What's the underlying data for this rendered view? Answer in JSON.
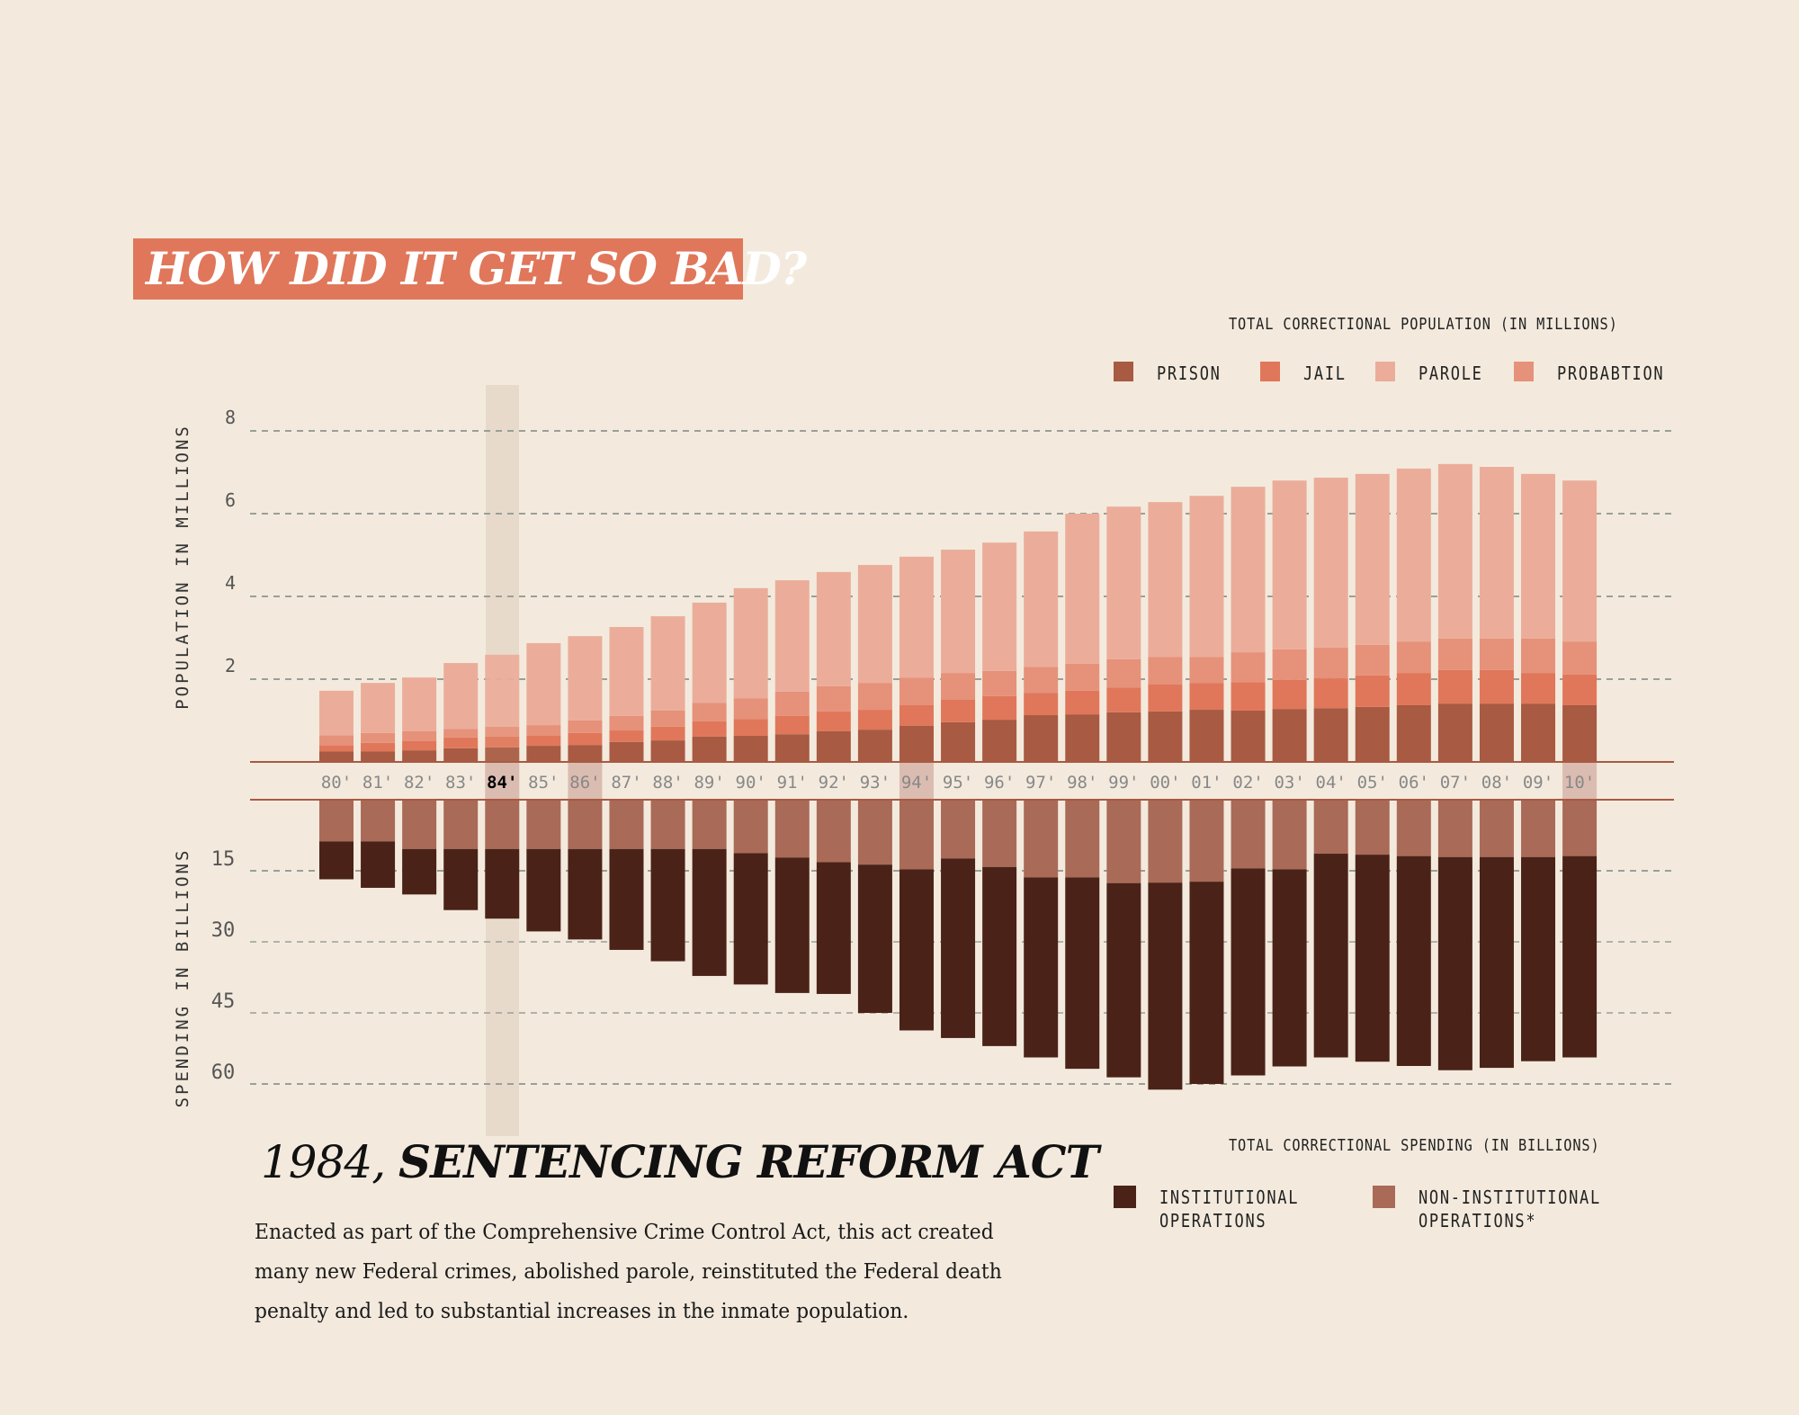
{
  "title": "HOW DID IT GET SO BAD?",
  "event": {
    "year_label": "1984,",
    "name": "SENTENCING REFORM ACT",
    "description": "Enacted as part of the Comprehensive Crime Control Act, this act created many new Federal crimes, abolished parole, reinstituted the Federal death penalty and led to substantial increases in the inmate population."
  },
  "colors": {
    "background": "#f3eadd",
    "title_box": "#e0775a",
    "prison": "#a85a42",
    "jail": "#e0775a",
    "parole": "#ebad9a",
    "probation": "#e6917a",
    "institutional": "#4a2218",
    "non_institutional": "#a96a58",
    "highlight": "#e8dacb",
    "label_highlight": "#dbbcb1",
    "gridline": "#9a9f98"
  },
  "chart_data": [
    {
      "type": "bar",
      "stacked": true,
      "title": "TOTAL CORRECTIONAL POPULATION (IN MILLIONS)",
      "ylabel": "POPULATION IN MILLIONS",
      "xlabel": "",
      "ylim": [
        0,
        8
      ],
      "yticks": [
        2,
        4,
        6,
        8
      ],
      "grid": true,
      "legend": {
        "position": "top-right",
        "items": [
          {
            "key": "prison",
            "label": "PRISON"
          },
          {
            "key": "jail",
            "label": "JAIL"
          },
          {
            "key": "parole",
            "label": "PAROLE"
          },
          {
            "key": "probation",
            "label": "PROBABTION"
          }
        ]
      },
      "categories": [
        "80'",
        "81'",
        "82'",
        "83'",
        "84'",
        "85'",
        "86'",
        "87'",
        "88'",
        "89'",
        "90'",
        "91'",
        "92'",
        "93'",
        "94'",
        "95'",
        "96'",
        "97'",
        "98'",
        "99'",
        "00'",
        "01'",
        "02'",
        "03'",
        "04'",
        "05'",
        "06'",
        "07'",
        "08'",
        "09'",
        "10'"
      ],
      "highlighted_category": "84'",
      "shaded_categories": [
        "86'",
        "94'",
        "10'"
      ],
      "series": [
        {
          "name": "PRISON",
          "key": "prison",
          "values": [
            0.25,
            0.25,
            0.28,
            0.33,
            0.35,
            0.39,
            0.41,
            0.48,
            0.52,
            0.61,
            0.63,
            0.67,
            0.74,
            0.78,
            0.87,
            0.96,
            1.02,
            1.13,
            1.15,
            1.2,
            1.22,
            1.26,
            1.24,
            1.28,
            1.3,
            1.33,
            1.37,
            1.41,
            1.41,
            1.41,
            1.37
          ]
        },
        {
          "name": "JAIL",
          "key": "jail",
          "values": [
            0.15,
            0.21,
            0.22,
            0.26,
            0.26,
            0.24,
            0.29,
            0.28,
            0.33,
            0.37,
            0.41,
            0.44,
            0.48,
            0.48,
            0.5,
            0.54,
            0.57,
            0.54,
            0.57,
            0.6,
            0.65,
            0.65,
            0.69,
            0.7,
            0.72,
            0.76,
            0.78,
            0.81,
            0.81,
            0.74,
            0.74
          ]
        },
        {
          "name": "PROBABTION",
          "key": "probation",
          "values": [
            0.24,
            0.24,
            0.24,
            0.21,
            0.24,
            0.26,
            0.3,
            0.35,
            0.39,
            0.45,
            0.5,
            0.59,
            0.61,
            0.65,
            0.67,
            0.65,
            0.61,
            0.63,
            0.65,
            0.68,
            0.67,
            0.63,
            0.72,
            0.74,
            0.74,
            0.74,
            0.76,
            0.76,
            0.76,
            0.83,
            0.8
          ]
        },
        {
          "name": "PAROLE",
          "key": "parole",
          "values": [
            1.08,
            1.21,
            1.3,
            1.59,
            1.74,
            1.98,
            2.04,
            2.15,
            2.28,
            2.42,
            2.66,
            2.69,
            2.76,
            2.85,
            2.92,
            2.98,
            3.1,
            3.27,
            3.63,
            3.69,
            3.74,
            3.89,
            4.0,
            4.08,
            4.11,
            4.13,
            4.18,
            4.22,
            4.15,
            3.98,
            3.89
          ]
        }
      ],
      "totals": [
        1.72,
        1.91,
        2.04,
        2.39,
        2.59,
        2.87,
        3.04,
        3.26,
        3.52,
        3.85,
        4.2,
        4.39,
        4.59,
        4.76,
        4.96,
        5.13,
        5.3,
        5.57,
        6.0,
        6.17,
        6.28,
        6.43,
        6.65,
        6.8,
        6.87,
        6.96,
        7.09,
        7.2,
        7.13,
        6.96,
        6.8
      ]
    },
    {
      "type": "bar",
      "stacked": true,
      "orientation": "downward",
      "title": "TOTAL CORRECTIONAL SPENDING (IN BILLIONS)",
      "ylabel": "SPENDING IN BILLIONS",
      "xlabel": "",
      "ylim": [
        0,
        60
      ],
      "yticks": [
        15,
        30,
        45,
        60
      ],
      "grid": true,
      "legend": {
        "position": "bottom-right",
        "items": [
          {
            "key": "institutional",
            "label": "INSTITUTIONAL\nOPERATIONS"
          },
          {
            "key": "non_institutional",
            "label": "NON-INSTITUTIONAL\nOPERATIONS*"
          }
        ]
      },
      "categories": [
        "80'",
        "81'",
        "82'",
        "83'",
        "84'",
        "85'",
        "86'",
        "87'",
        "88'",
        "89'",
        "90'",
        "91'",
        "92'",
        "93'",
        "94'",
        "95'",
        "96'",
        "97'",
        "98'",
        "99'",
        "00'",
        "01'",
        "02'",
        "03'",
        "04'",
        "05'",
        "06'",
        "07'",
        "08'",
        "09'",
        "10'"
      ],
      "series": [
        {
          "name": "NON-INSTITUTIONAL OPERATIONS*",
          "key": "non_institutional",
          "values": [
            8.8,
            8.8,
            10.4,
            10.4,
            10.4,
            10.4,
            10.4,
            10.4,
            10.4,
            10.4,
            11.3,
            12.2,
            13.2,
            13.7,
            14.7,
            12.4,
            14.2,
            16.4,
            16.4,
            17.6,
            17.5,
            17.3,
            14.5,
            14.7,
            11.4,
            11.6,
            11.9,
            12.1,
            12.1,
            12.1,
            11.9
          ]
        },
        {
          "name": "INSTITUTIONAL OPERATIONS",
          "key": "institutional",
          "values": [
            8.0,
            9.8,
            9.6,
            12.9,
            14.7,
            17.4,
            19.1,
            21.3,
            23.7,
            26.8,
            27.7,
            28.6,
            27.8,
            31.3,
            34.0,
            37.9,
            37.8,
            38.0,
            40.4,
            41.0,
            43.7,
            42.7,
            43.7,
            41.6,
            43.0,
            43.7,
            44.3,
            45.0,
            44.5,
            43.1,
            42.5
          ]
        }
      ],
      "totals": [
        16.8,
        18.6,
        20.0,
        23.3,
        25.1,
        27.8,
        29.5,
        31.7,
        34.1,
        37.2,
        39.0,
        40.8,
        41.0,
        45.0,
        48.7,
        50.3,
        52.0,
        54.4,
        56.8,
        58.6,
        61.2,
        60.0,
        58.2,
        56.3,
        54.4,
        55.3,
        56.2,
        57.1,
        56.6,
        55.2,
        54.4
      ]
    }
  ]
}
